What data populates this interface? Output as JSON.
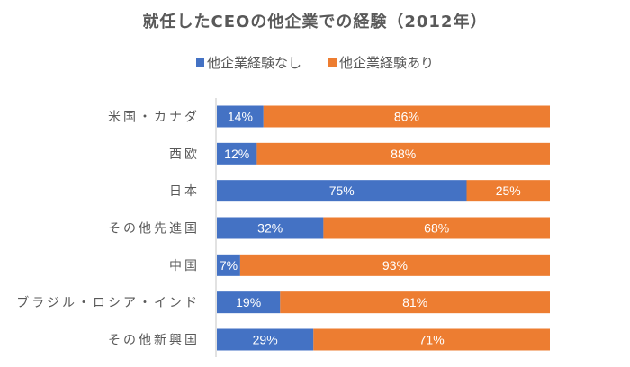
{
  "chart_data": {
    "type": "bar",
    "orientation": "horizontal",
    "stacked": "100%",
    "title": "就任したCEOの他企業での経験（2012年）",
    "xlabel": "",
    "ylabel": "",
    "categories": [
      "米国・カナダ",
      "西欧",
      "日本",
      "その他先進国",
      "中国",
      "ブラジル・ロシア・インド",
      "その他新興国"
    ],
    "series": [
      {
        "name": "他企業経験なし",
        "color": "#4472C4",
        "values": [
          14,
          12,
          75,
          32,
          7,
          19,
          29
        ],
        "labels": [
          "14%",
          "12%",
          "75%",
          "32%",
          "7%",
          "19%",
          "29%"
        ]
      },
      {
        "name": "他企業経験あり",
        "color": "#ED7D31",
        "values": [
          86,
          88,
          25,
          68,
          93,
          81,
          71
        ],
        "labels": [
          "86%",
          "88%",
          "25%",
          "68%",
          "93%",
          "81%",
          "71%"
        ]
      }
    ],
    "xlim": [
      0,
      100
    ],
    "grid": false,
    "legend_position": "top"
  }
}
